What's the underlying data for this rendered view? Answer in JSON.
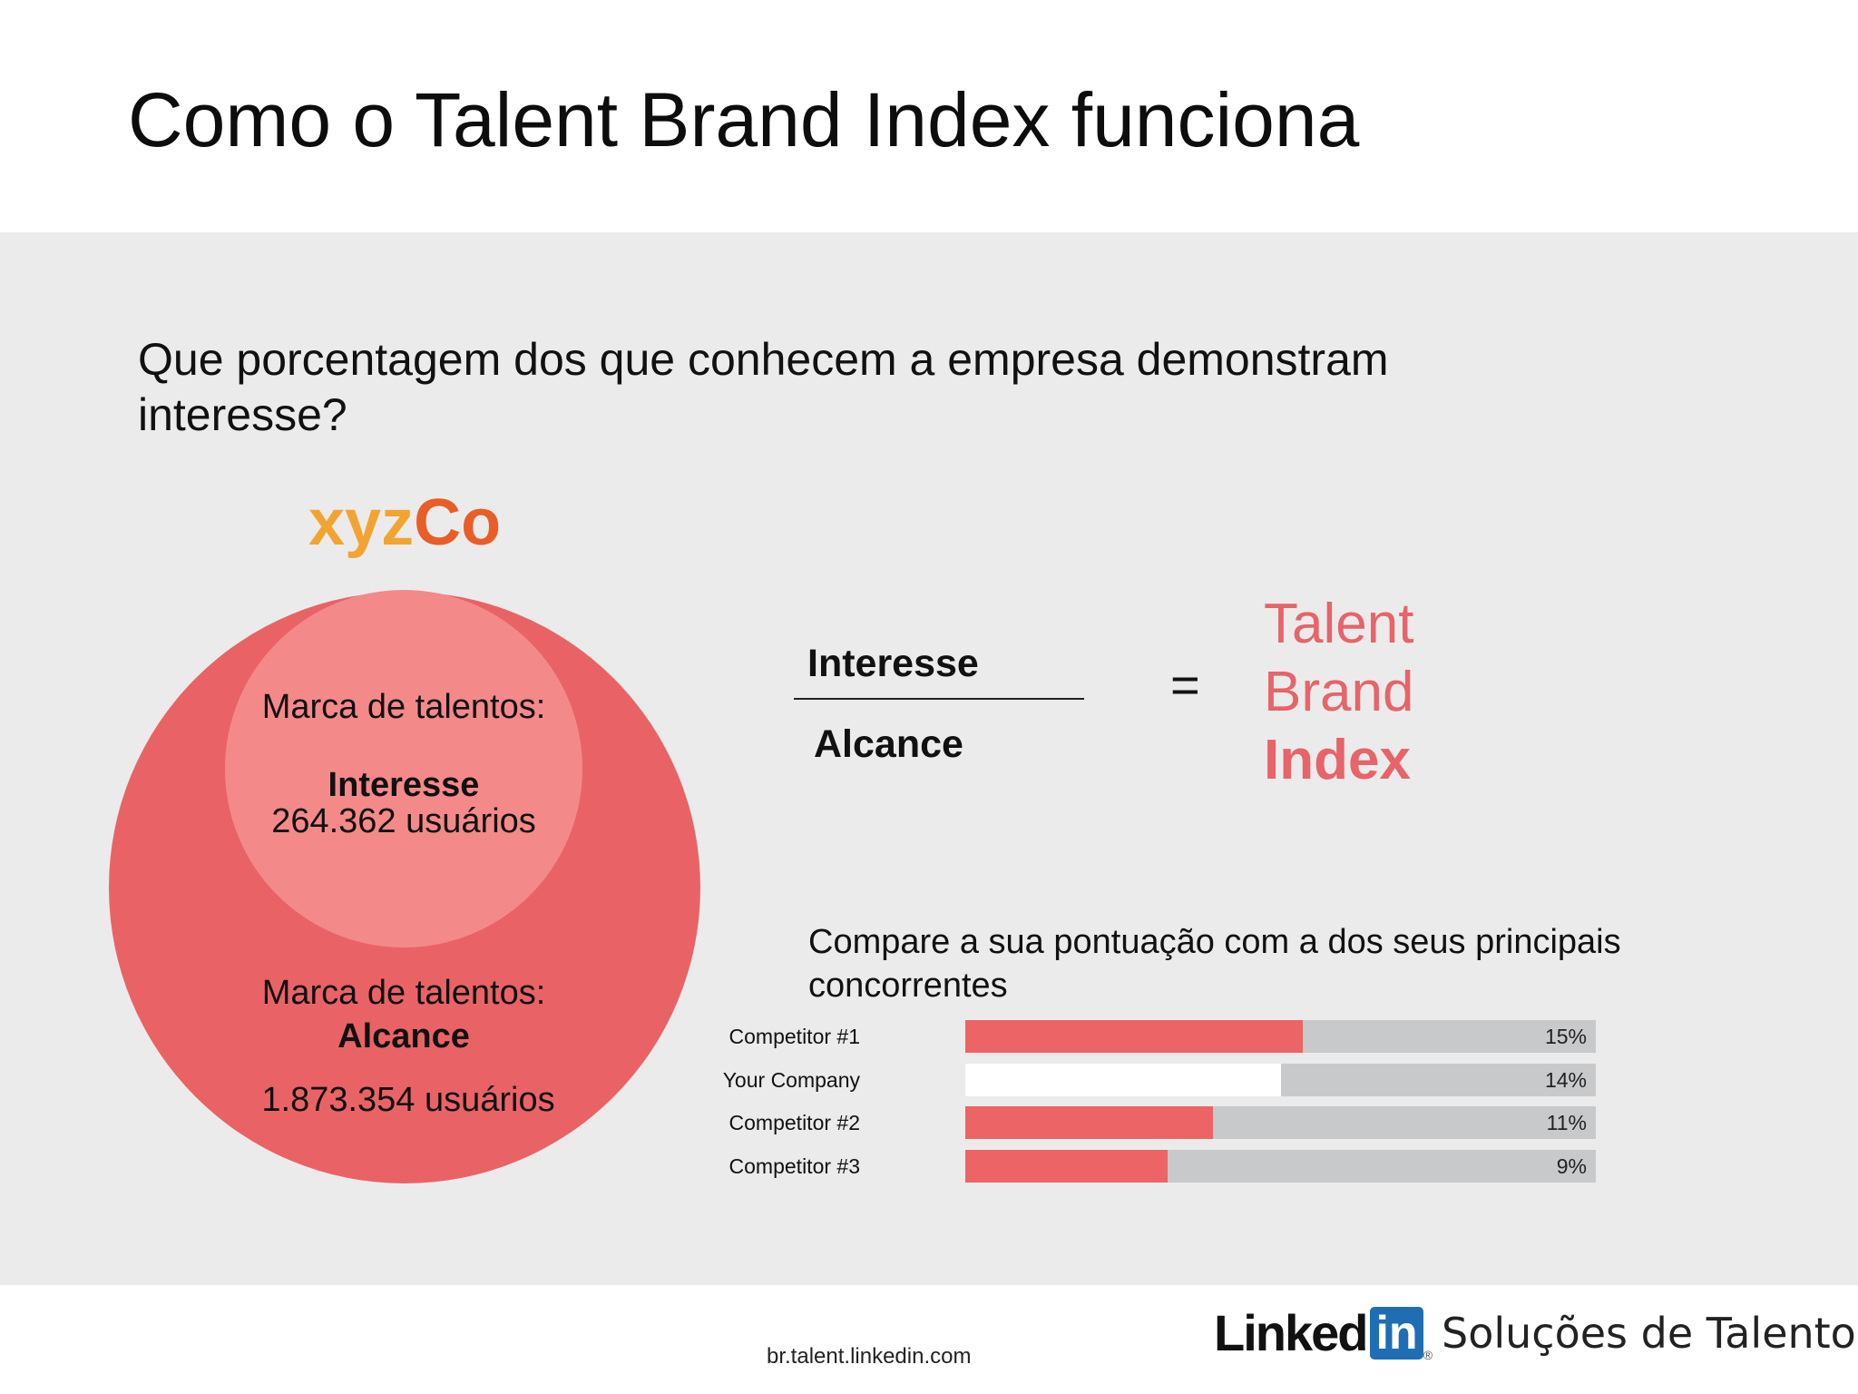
{
  "slide": {
    "title": "Como o Talent Brand Index funciona",
    "question": "Que porcentagem dos que conhecem a empresa demonstram interesse?"
  },
  "brand": {
    "part1": "xyz",
    "part2": "Co",
    "colors": {
      "part1": "#f2a433",
      "part2": "#e95d27"
    }
  },
  "venn": {
    "inner": {
      "label": "Marca de talentos:",
      "strong": "Interesse",
      "users": "264.362 usuários",
      "color": "#f4898a"
    },
    "outer": {
      "label": "Marca de talentos:",
      "strong": "Alcance",
      "users": "1.873.354 usuários",
      "color": "#e96366"
    }
  },
  "formula": {
    "numerator": "Interesse",
    "denominator": "Alcance",
    "equals": "=",
    "result": [
      "Talent",
      "Brand",
      "Index"
    ],
    "result_color": "#e6646a"
  },
  "comparison": {
    "heading": "Compare a sua pontuação com a dos seus principais concorrentes",
    "rows": [
      {
        "label": "Competitor #1",
        "value": 15,
        "display": "15%",
        "fill_color": "#ec6465"
      },
      {
        "label": "Your Company",
        "value": 14,
        "display": "14%",
        "fill_color": "#ffffff"
      },
      {
        "label": "Competitor #2",
        "value": 11,
        "display": "11%",
        "fill_color": "#ec6465"
      },
      {
        "label": "Competitor #3",
        "value": 9,
        "display": "9%",
        "fill_color": "#ec6465"
      }
    ]
  },
  "footer": {
    "url": "br.talent.linkedin.com",
    "logo_linked": "Linked",
    "logo_in": "in",
    "logo_reg": "®",
    "logo_tagline": "Soluções de Talentos"
  }
}
